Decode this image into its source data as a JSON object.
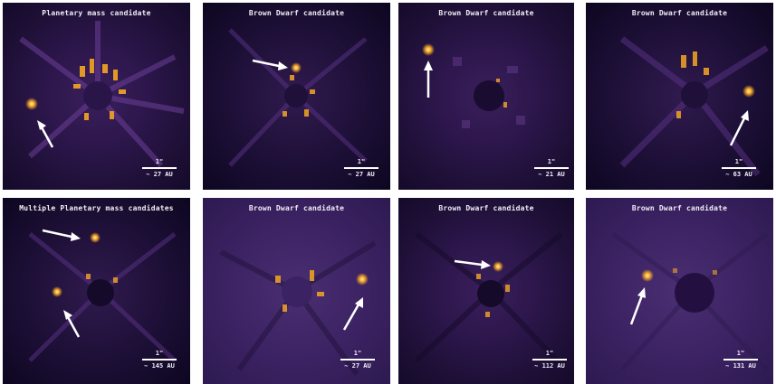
{
  "panels": [
    {
      "title": "Planetary mass candidate",
      "scale_label": "1\"",
      "au": "~ 27 AU"
    },
    {
      "title": "Brown Dwarf candidate",
      "scale_label": "1\"",
      "au": "~ 27 AU"
    },
    {
      "title": "Brown Dwarf candidate",
      "scale_label": "1\"",
      "au": "~ 21 AU"
    },
    {
      "title": "Brown Dwarf candidate",
      "scale_label": "1\"",
      "au": "~ 63 AU"
    },
    {
      "title": "Multiple Planetary mass candidates",
      "scale_label": "1\"",
      "au": "~ 145 AU"
    },
    {
      "title": "Brown Dwarf candidate",
      "scale_label": "1\"",
      "au": "~ 27 AU"
    },
    {
      "title": "Brown Dwarf candidate",
      "scale_label": "1\"",
      "au": "~ 112 AU"
    },
    {
      "title": "Brown Dwarf candidate",
      "scale_label": "1\"",
      "au": "~ 131 AU"
    }
  ],
  "colors": {
    "background": "#1d0f35",
    "speckle": "#f5a623",
    "arrow": "#ffffff"
  },
  "icons": [
    "arrow-icon",
    "coronagraph-mask-icon",
    "companion-source-icon"
  ]
}
